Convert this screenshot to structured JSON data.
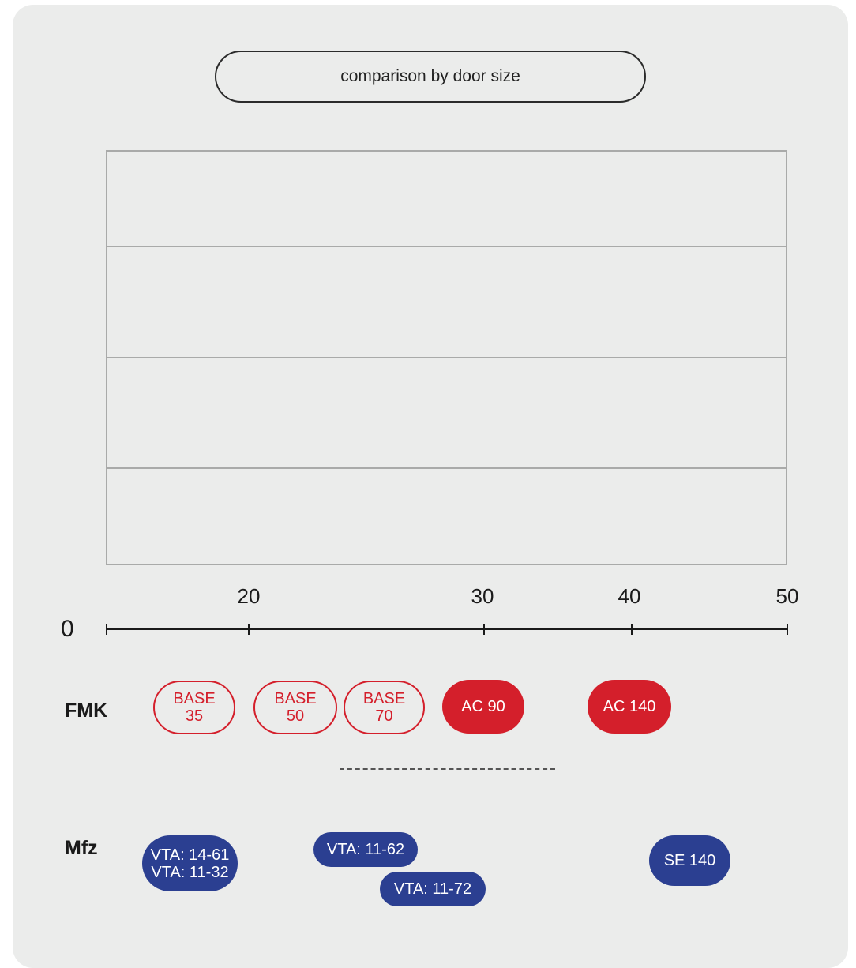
{
  "title": "comparison by door size",
  "axis": {
    "zero_label": "0",
    "ticks": [
      {
        "value": 20,
        "label": "20"
      },
      {
        "value": 30,
        "label": "30"
      },
      {
        "value": 40,
        "label": "40"
      },
      {
        "value": 50,
        "label": "50"
      }
    ]
  },
  "rows": [
    {
      "label": "FMK",
      "items": [
        {
          "line1": "BASE",
          "line2": "35",
          "style": "outline"
        },
        {
          "line1": "BASE",
          "line2": "50",
          "style": "outline"
        },
        {
          "line1": "BASE",
          "line2": "70",
          "style": "outline"
        },
        {
          "line1": "AC 90",
          "line2": "",
          "style": "filled"
        },
        {
          "line1": "AC 140",
          "line2": "",
          "style": "filled"
        }
      ]
    },
    {
      "label": "Mfz",
      "items": [
        {
          "line1": "VTA: 14-61",
          "line2": "VTA: 11-32"
        },
        {
          "line1": "VTA: 11-62",
          "line2": ""
        },
        {
          "line1": "VTA: 11-72",
          "line2": ""
        },
        {
          "line1": "SE 140",
          "line2": ""
        }
      ]
    }
  ],
  "colors": {
    "fmk_red": "#d41f2b",
    "mfz_blue": "#2b3f91",
    "panel_bg": "#ebeceb"
  }
}
